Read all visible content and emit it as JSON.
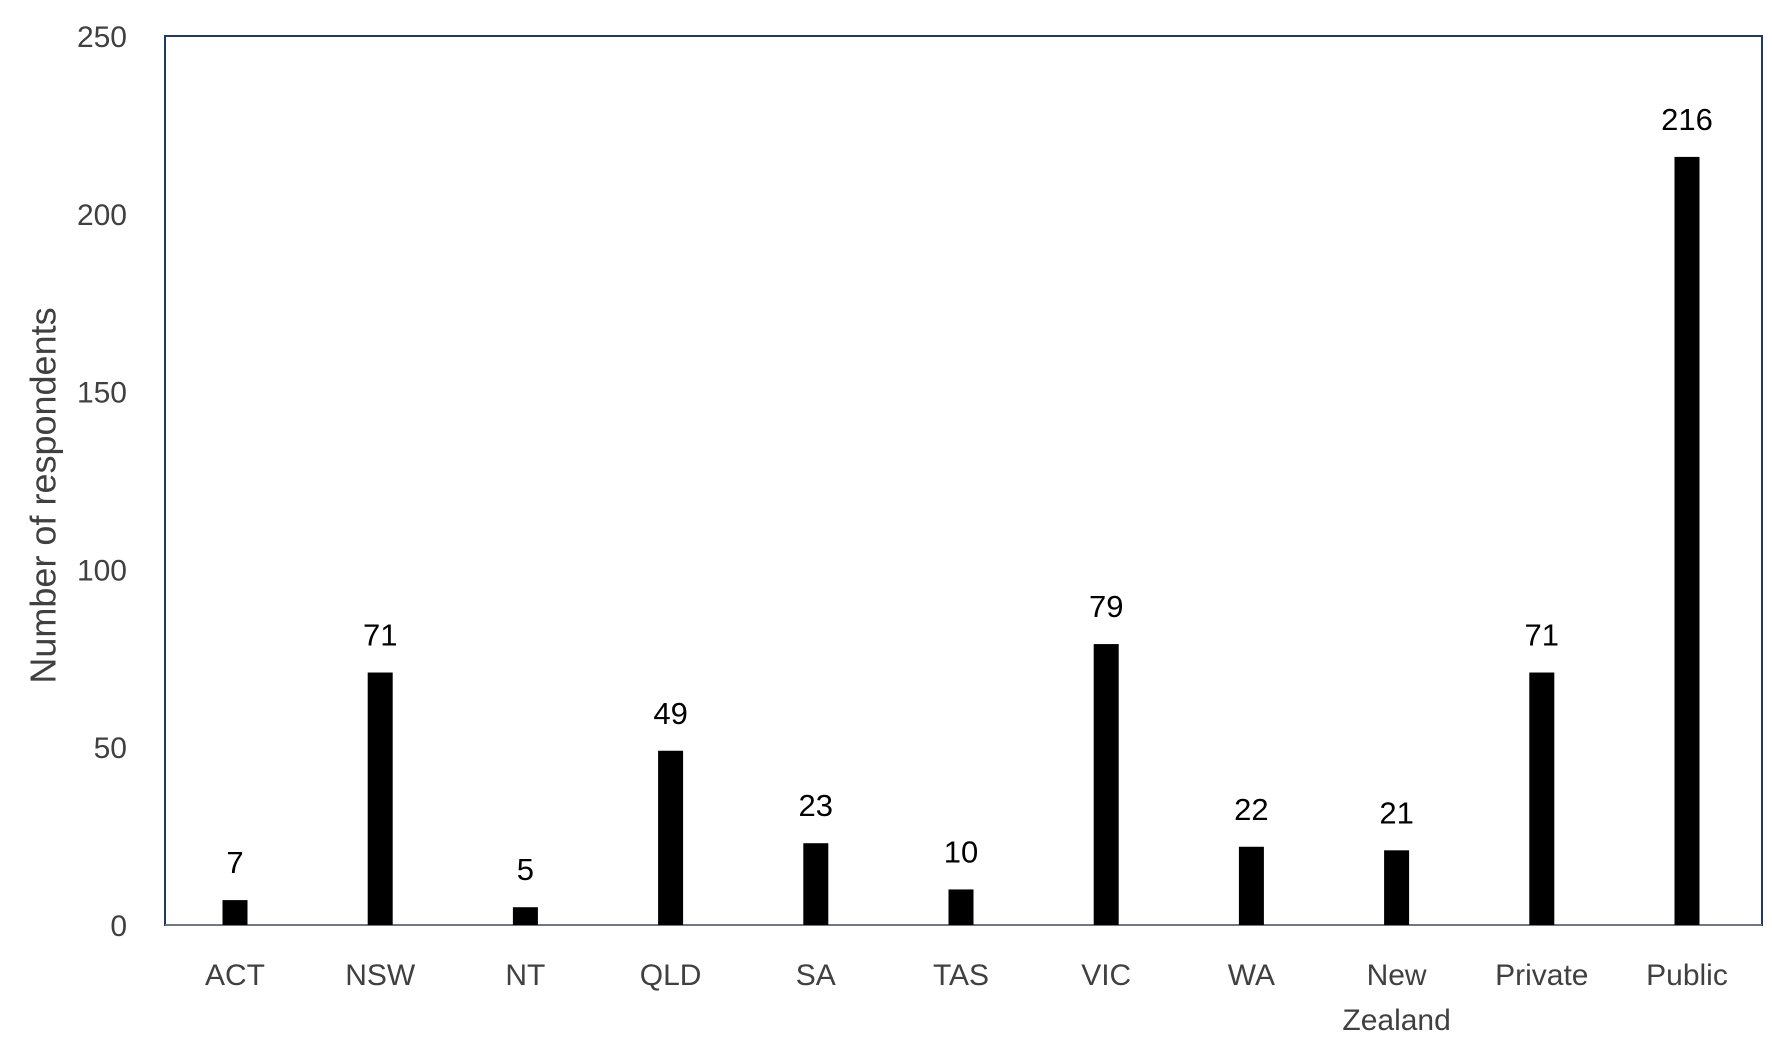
{
  "chart_data": {
    "type": "bar",
    "categories": [
      "ACT",
      "NSW",
      "NT",
      "QLD",
      "SA",
      "TAS",
      "VIC",
      "WA",
      "New Zealand",
      "Private",
      "Public"
    ],
    "category_lines": [
      [
        "ACT"
      ],
      [
        "NSW"
      ],
      [
        "NT"
      ],
      [
        "QLD"
      ],
      [
        "SA"
      ],
      [
        "TAS"
      ],
      [
        "VIC"
      ],
      [
        "WA"
      ],
      [
        "New",
        "Zealand"
      ],
      [
        "Private"
      ],
      [
        "Public"
      ]
    ],
    "values": [
      7,
      71,
      5,
      49,
      23,
      10,
      79,
      22,
      21,
      71,
      216
    ],
    "data_labels": [
      "7",
      "71",
      "5",
      "49",
      "23",
      "10",
      "79",
      "22",
      "21",
      "71",
      "216"
    ],
    "title": "",
    "xlabel": "",
    "ylabel": "Number of respondents",
    "ylim": [
      0,
      250
    ],
    "yticks": [
      0,
      50,
      100,
      150,
      200,
      250
    ],
    "ytick_labels": [
      "0",
      "50",
      "100",
      "150",
      "200",
      "250"
    ],
    "grid": false,
    "legend": "none",
    "colors": {
      "bar": "#000000",
      "frame": "#1f3864",
      "text": "#404040"
    }
  }
}
